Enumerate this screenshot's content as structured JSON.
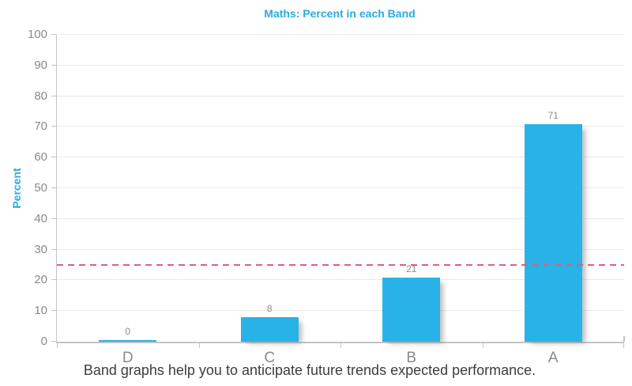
{
  "colors": {
    "accent_cyan": "#29abe2",
    "bar_fill": "#29b2e7",
    "reference_line": "#e0607a",
    "axis_line": "#c4c4c4",
    "gridline": "#eaeaea",
    "tick_label": "#8a8a8a",
    "value_label": "#8c8c8c",
    "caption_text": "#3d3d3d"
  },
  "chart_data": {
    "type": "bar",
    "title": "Maths: Percent in each Band",
    "ylabel": "Percent",
    "xlabel": "",
    "categories": [
      "D",
      "C",
      "B",
      "A"
    ],
    "values": [
      0,
      8,
      21,
      71
    ],
    "bar_value_labels": [
      "0",
      "8",
      "21",
      "71"
    ],
    "ylim": [
      0,
      100
    ],
    "ytick_step": 10,
    "yticks": [
      0,
      10,
      20,
      30,
      40,
      50,
      60,
      70,
      80,
      90,
      100
    ],
    "grid": true,
    "legend": false,
    "reference_line": {
      "value": 25,
      "style": "dashed",
      "color": "#e0607a"
    }
  },
  "caption": "Band graphs help you to anticipate future trends expected performance."
}
